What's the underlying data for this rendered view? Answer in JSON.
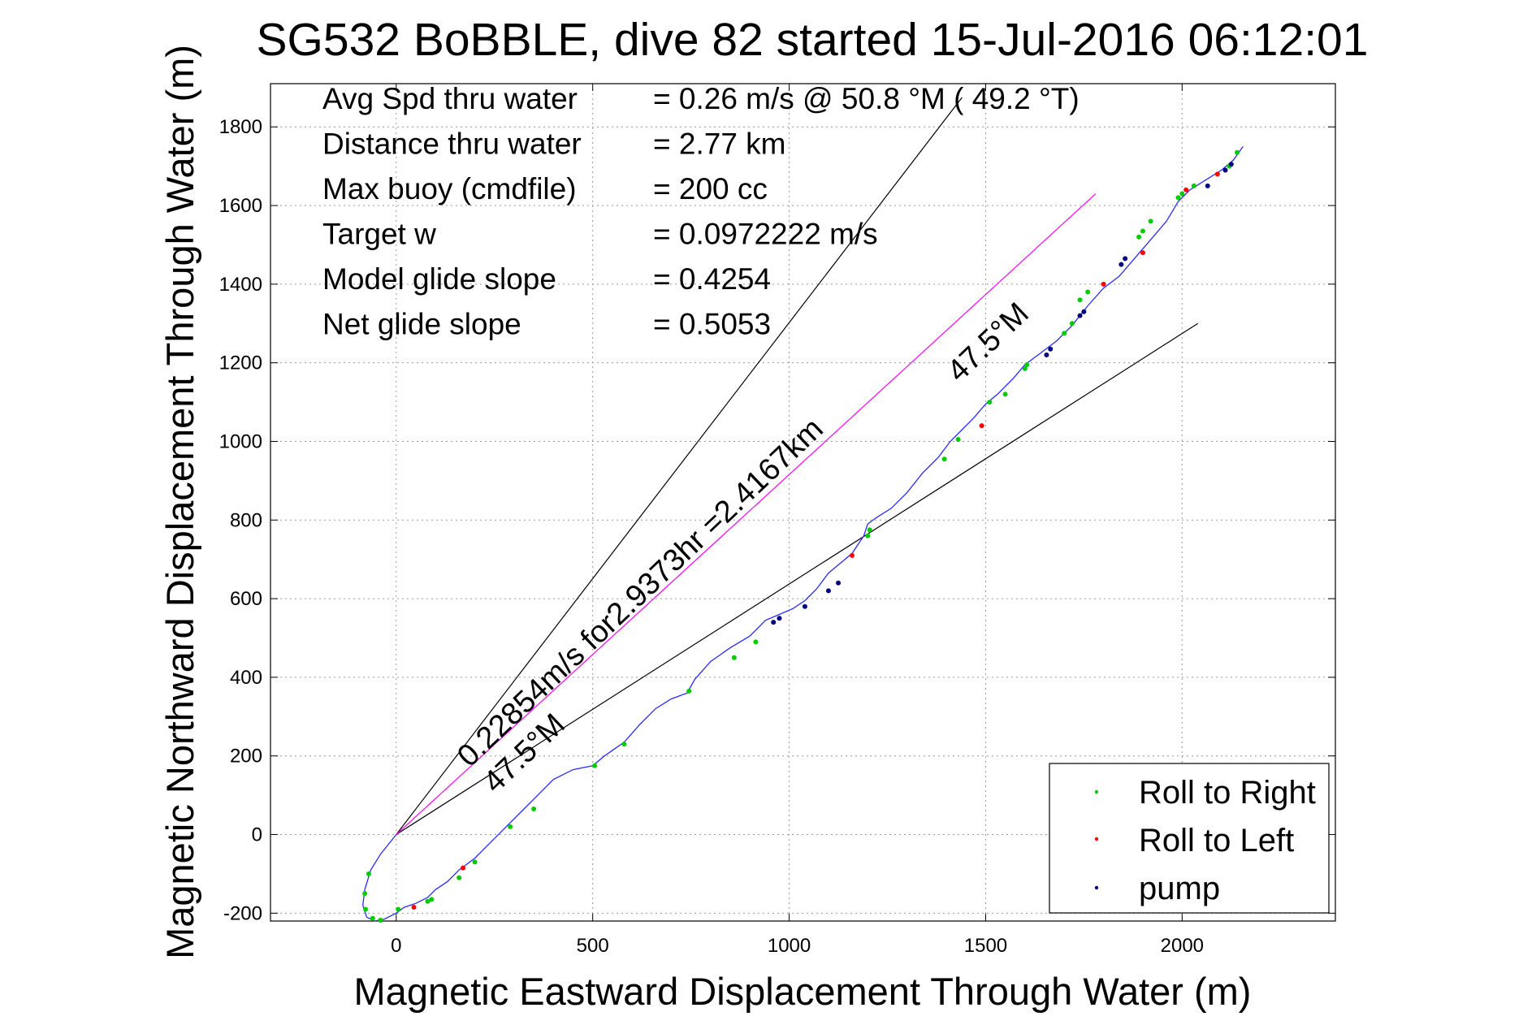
{
  "chart_data": {
    "type": "line",
    "title": "SG532 BoBBLE, dive 82 started 15-Jul-2016 06:12:01",
    "xlabel": "Magnetic Eastward Displacement Through Water (m)",
    "ylabel": "Magnetic Northward Displacement Through Water (m)",
    "xlim": [
      -320,
      2390
    ],
    "ylim": [
      -220,
      1910
    ],
    "xticks": [
      0,
      500,
      1000,
      1500,
      2000
    ],
    "yticks": [
      -200,
      0,
      200,
      400,
      600,
      800,
      1000,
      1200,
      1400,
      1600,
      1800
    ],
    "grid": true,
    "legend_position": "bottom-right",
    "stats": [
      {
        "label": "Avg Spd thru water",
        "value": "=  0.26 m/s @  50.8 °M ( 49.2 °T)"
      },
      {
        "label": "Distance thru water",
        "value": "=  2.77 km"
      },
      {
        "label": "Max buoy (cmdfile)",
        "value": "= 200 cc"
      },
      {
        "label": "Target w",
        "value": "= 0.0972222 m/s"
      },
      {
        "label": "Model glide slope",
        "value": "= 0.4254"
      },
      {
        "label": "Net glide slope",
        "value": "= 0.5053"
      }
    ],
    "annotations": {
      "current_label": "0.22854m/s for2.9373hr =2.4167km",
      "heading_label_low": "47.5°M",
      "heading_label_high": "47.5°M"
    },
    "guide_lines": {
      "upper": {
        "x": [
          0,
          1440
        ],
        "y": [
          0,
          1875
        ]
      },
      "lower": {
        "x": [
          0,
          2040
        ],
        "y": [
          0,
          1300
        ]
      },
      "net_current": {
        "x": [
          0,
          1780
        ],
        "y": [
          0,
          1630
        ]
      }
    },
    "track": {
      "x": [
        0,
        -40,
        -65,
        -80,
        -85,
        -75,
        -55,
        -30,
        0,
        20,
        50,
        80,
        100,
        130,
        160,
        200,
        240,
        280,
        320,
        360,
        400,
        450,
        500,
        530,
        580,
        620,
        660,
        700,
        740,
        760,
        800,
        850,
        900,
        940,
        975,
        1010,
        1040,
        1070,
        1100,
        1130,
        1160,
        1190,
        1200,
        1220,
        1260,
        1300,
        1340,
        1380,
        1410,
        1440,
        1470,
        1500,
        1530,
        1570,
        1600,
        1640,
        1680,
        1720,
        1760,
        1800,
        1840,
        1870,
        1900,
        1930,
        1960,
        1990,
        2020,
        2060,
        2100,
        2130,
        2155
      ],
      "y": [
        0,
        -50,
        -90,
        -140,
        -180,
        -210,
        -220,
        -215,
        -200,
        -185,
        -175,
        -160,
        -140,
        -120,
        -90,
        -60,
        -20,
        20,
        60,
        100,
        140,
        165,
        175,
        200,
        235,
        280,
        320,
        345,
        360,
        395,
        440,
        475,
        505,
        545,
        560,
        575,
        595,
        625,
        665,
        690,
        715,
        760,
        790,
        805,
        830,
        870,
        920,
        960,
        1000,
        1030,
        1060,
        1095,
        1120,
        1160,
        1195,
        1225,
        1255,
        1295,
        1345,
        1390,
        1420,
        1455,
        1490,
        1525,
        1560,
        1610,
        1640,
        1665,
        1690,
        1715,
        1750
      ]
    },
    "series": [
      {
        "name": "Roll to Right",
        "color": "#00cc00",
        "marker": "dot",
        "x": [
          -70,
          -80,
          -78,
          -60,
          -40,
          5,
          80,
          90,
          160,
          200,
          290,
          350,
          505,
          580,
          745,
          860,
          915,
          1200,
          1205,
          1395,
          1430,
          1510,
          1550,
          1600,
          1605,
          1700,
          1720,
          1740,
          1760,
          1890,
          1900,
          1920,
          1990,
          2000,
          2030,
          2120,
          2140
        ],
        "y": [
          -100,
          -150,
          -190,
          -213,
          -218,
          -190,
          -170,
          -165,
          -110,
          -70,
          20,
          65,
          175,
          230,
          365,
          450,
          490,
          760,
          775,
          955,
          1005,
          1100,
          1120,
          1185,
          1195,
          1275,
          1300,
          1360,
          1380,
          1520,
          1535,
          1560,
          1620,
          1630,
          1650,
          1700,
          1735
        ]
      },
      {
        "name": "Roll to Left",
        "color": "#ff0000",
        "marker": "dot",
        "x": [
          45,
          170,
          1160,
          1490,
          1800,
          1900,
          2010,
          2090
        ],
        "y": [
          -185,
          -85,
          710,
          1040,
          1400,
          1480,
          1640,
          1680
        ]
      },
      {
        "name": "pump",
        "color": "#000080",
        "marker": "dot",
        "x": [
          960,
          975,
          1040,
          1100,
          1125,
          1655,
          1665,
          1740,
          1750,
          1845,
          1855,
          2065,
          2110,
          2125
        ],
        "y": [
          540,
          550,
          580,
          620,
          640,
          1220,
          1235,
          1320,
          1330,
          1450,
          1465,
          1650,
          1690,
          1705
        ]
      }
    ]
  }
}
